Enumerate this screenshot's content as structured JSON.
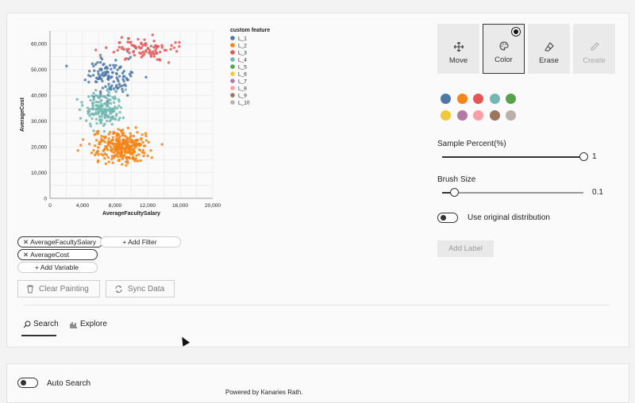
{
  "chart_data": {
    "type": "scatter",
    "xlabel": "AverageFacultySalary",
    "ylabel": "AverageCost",
    "xlim": [
      0,
      20000
    ],
    "ylim": [
      0,
      65000
    ],
    "x_ticks": [
      "0",
      "4,000",
      "8,000",
      "12,000",
      "16,000",
      "20,000"
    ],
    "y_ticks": [
      "0",
      "10,000",
      "20,000",
      "30,000",
      "40,000",
      "50,000",
      "60,000"
    ],
    "legend_title": "custom feature",
    "legend_placement": "right",
    "grid": true,
    "series": [
      {
        "name": "L_1",
        "color": "#4c78a8",
        "cx": 7500,
        "cy": 47000,
        "sx": 1300,
        "sy": 3500,
        "n": 120
      },
      {
        "name": "L_2",
        "color": "#f58518",
        "cx": 8600,
        "cy": 20000,
        "sx": 1800,
        "sy": 3000,
        "n": 300
      },
      {
        "name": "L_3",
        "color": "#e45756",
        "cx": 11500,
        "cy": 58000,
        "sx": 1800,
        "sy": 2200,
        "n": 90
      },
      {
        "name": "L_4",
        "color": "#72b7b2",
        "cx": 6500,
        "cy": 35000,
        "sx": 1100,
        "sy": 3500,
        "n": 170
      },
      {
        "name": "L_5",
        "color": "#54a24b"
      },
      {
        "name": "L_6",
        "color": "#eeca3b"
      },
      {
        "name": "L_7",
        "color": "#b279a2"
      },
      {
        "name": "L_8",
        "color": "#ff9da6"
      },
      {
        "name": "L_9",
        "color": "#9d755d"
      },
      {
        "name": "L_10",
        "color": "#bab0ac"
      }
    ]
  },
  "axes": {
    "filters": [
      "AverageFacultySalary",
      "AverageCost"
    ],
    "add_filter": "+ Add Filter",
    "add_variable": "+ Add Variable"
  },
  "actions": {
    "clear": "Clear Painting",
    "sync": "Sync Data"
  },
  "tabs": [
    "Search",
    "Explore"
  ],
  "tools": [
    {
      "label": "Move",
      "icon": "move-icon"
    },
    {
      "label": "Color",
      "icon": "palette-icon"
    },
    {
      "label": "Erase",
      "icon": "eraser-icon"
    },
    {
      "label": "Create",
      "icon": "pencil-icon"
    }
  ],
  "palette": [
    "#4c78a8",
    "#f58518",
    "#e45756",
    "#72b7b2",
    "#54a24b",
    "#eeca3b",
    "#b279a2",
    "#ff9da6",
    "#9d755d",
    "#bab0ac"
  ],
  "sample": {
    "label": "Sample Percent(%)",
    "value": "1",
    "fraction": 1.0
  },
  "brush": {
    "label": "Brush Size",
    "value": "0.1",
    "fraction": 0.1
  },
  "original_dist": "Use original distribution",
  "add_label": "Add Label",
  "auto_search": "Auto Search",
  "footer": "Powered by Kanaries Rath."
}
